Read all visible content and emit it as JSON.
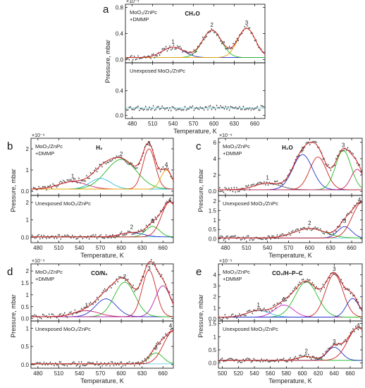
{
  "chart_data": [
    {
      "type": "line",
      "panel_letter": "a",
      "gas_label": "CH₂O",
      "xlabel": "Temperature, K",
      "ylabel": "Pressure, mbar",
      "exponent": "×10⁻⁹",
      "xlim": [
        470,
        675
      ],
      "xticks": [
        480,
        510,
        540,
        570,
        600,
        630,
        660
      ],
      "exposed": {
        "label_lines": [
          "MoO₃/ZnPc",
          "+DMMP"
        ],
        "ylim": [
          -0.05,
          0.85
        ],
        "yticks": [
          0.0,
          0.4,
          0.8
        ],
        "background": 0.03,
        "peaks": [
          {
            "number": "1",
            "center": 540,
            "height": 0.16,
            "width": 16,
            "color": "#2233cc"
          },
          {
            "number": "2",
            "center": 597,
            "height": 0.42,
            "width": 14,
            "color": "#22bb22"
          },
          {
            "number": "3",
            "center": 648,
            "height": 0.45,
            "width": 13,
            "color": "#e8a300"
          }
        ]
      },
      "unexposed": {
        "label": "Unexposed MoO₃/ZnPc",
        "ylim": [
          -0.05,
          0.85
        ],
        "yticks": [
          0.0,
          0.4
        ],
        "background": 0.12,
        "peaks": []
      }
    },
    {
      "type": "line",
      "panel_letter": "b",
      "gas_label": "H₂",
      "xlabel": "Temperature, K",
      "ylabel": "Pressure, mbar",
      "exponent": "×10⁻⁹",
      "xlim": [
        470,
        675
      ],
      "xticks": [
        480,
        510,
        540,
        570,
        600,
        630,
        660
      ],
      "exposed": {
        "label_lines": [
          "MoO₃/ZnPc",
          "+DMMP"
        ],
        "ylim": [
          -0.2,
          2.5
        ],
        "yticks": [
          0,
          1,
          2
        ],
        "background": 0.1,
        "peaks": [
          {
            "number": "1",
            "center": 530,
            "height": 0.35,
            "width": 20,
            "color": "#cc2266"
          },
          {
            "number": "2",
            "center": 600,
            "height": 1.4,
            "width": 22,
            "color": "#22bb22"
          },
          {
            "number": "",
            "center": 570,
            "height": 0.5,
            "width": 15,
            "color": "#33bbdd"
          },
          {
            "number": "3",
            "center": 640,
            "height": 1.9,
            "width": 9,
            "color": "#cc2222"
          },
          {
            "number": "4",
            "center": 665,
            "height": 0.9,
            "width": 8,
            "color": "#e8a300"
          }
        ]
      },
      "unexposed": {
        "label": "Unexposed MoO₃/ZnPc",
        "ylim": [
          -0.3,
          2.4
        ],
        "yticks": [
          0,
          1,
          2
        ],
        "background": 0.03,
        "peaks": [
          {
            "number": "2",
            "center": 615,
            "height": 0.25,
            "width": 16,
            "color": "#2233cc"
          },
          {
            "number": "3",
            "center": 645,
            "height": 0.6,
            "width": 10,
            "color": "#22bb22"
          },
          {
            "number": "4",
            "center": 670,
            "height": 2.0,
            "width": 12,
            "color": "#cc2222"
          }
        ]
      }
    },
    {
      "type": "line",
      "panel_letter": "c",
      "gas_label": "H₂O",
      "xlabel": "Temperature, K",
      "ylabel": "Pressure, mbar",
      "exponent": "×10⁻⁹",
      "xlim": [
        470,
        675
      ],
      "xticks": [
        480,
        510,
        540,
        570,
        600,
        630,
        660
      ],
      "exposed": {
        "label_lines": [
          "MoO₃/ZnPc",
          "+DMMP"
        ],
        "ylim": [
          -0.5,
          6.5
        ],
        "yticks": [
          0,
          2,
          4,
          6
        ],
        "background": 0.2,
        "peaks": [
          {
            "number": "1",
            "center": 540,
            "height": 0.8,
            "width": 18,
            "color": "#555555"
          },
          {
            "number": "2",
            "center": 590,
            "height": 4.3,
            "width": 14,
            "color": "#2233cc"
          },
          {
            "number": "",
            "center": 612,
            "height": 4.0,
            "width": 12,
            "color": "#cc2222"
          },
          {
            "number": "3",
            "center": 648,
            "height": 4.8,
            "width": 11,
            "color": "#22bb22"
          },
          {
            "number": "",
            "center": 668,
            "height": 2.5,
            "width": 9,
            "color": "#cc2266"
          }
        ]
      },
      "unexposed": {
        "label": "Unexposed MoO₃/ZnPc",
        "ylim": [
          -0.2,
          2.3
        ],
        "yticks": [
          0.0,
          0.5,
          1.0,
          1.5,
          2.0
        ],
        "background": 0.05,
        "peaks": [
          {
            "number": "2",
            "center": 600,
            "height": 0.5,
            "width": 22,
            "color": "#22bb22"
          },
          {
            "number": "3",
            "center": 650,
            "height": 0.6,
            "width": 10,
            "color": "#2233cc"
          },
          {
            "number": "4",
            "center": 675,
            "height": 1.9,
            "width": 14,
            "color": "#cc2222"
          }
        ]
      }
    },
    {
      "type": "line",
      "panel_letter": "d",
      "gas_label": "CO/N₂",
      "xlabel": "Temperature, K",
      "ylabel": "Pressure, mbar",
      "exponent": "×10⁻⁹",
      "xlim": [
        470,
        675
      ],
      "xticks": [
        480,
        510,
        540,
        570,
        600,
        630,
        660
      ],
      "exposed": {
        "label_lines": [
          "MoO₃/ZnPc",
          "+DMMP"
        ],
        "ylim": [
          -0.1,
          2.3
        ],
        "yticks": [
          0.0,
          0.5,
          1.0,
          1.5,
          2.0
        ],
        "background": 0.08,
        "peaks": [
          {
            "number": "1",
            "center": 550,
            "height": 0.25,
            "width": 18,
            "color": "#cc2266"
          },
          {
            "number": "",
            "center": 578,
            "height": 0.75,
            "width": 15,
            "color": "#2233cc"
          },
          {
            "number": "2",
            "center": 605,
            "height": 1.45,
            "width": 15,
            "color": "#22bb22"
          },
          {
            "number": "3",
            "center": 640,
            "height": 1.95,
            "width": 10,
            "color": "#cc2222"
          },
          {
            "number": "",
            "center": 660,
            "height": 1.3,
            "width": 11,
            "color": "#aa22aa"
          }
        ]
      },
      "unexposed": {
        "label": "Unexposed MoO₃/ZnPc",
        "ylim": [
          -0.1,
          1.2
        ],
        "yticks": [
          0.0,
          0.5,
          1.0
        ],
        "background": 0.02,
        "peaks": [
          {
            "number": "3",
            "center": 650,
            "height": 0.3,
            "width": 10,
            "color": "#22bb22"
          },
          {
            "number": "4",
            "center": 675,
            "height": 0.9,
            "width": 14,
            "color": "#cc2222"
          }
        ]
      }
    },
    {
      "type": "line",
      "panel_letter": "e",
      "gas_label": "CO₂/H–P–C",
      "xlabel": "Temperature, K",
      "ylabel": "Pressure, mbar",
      "exponent": "×10⁻⁹",
      "xlim": [
        495,
        675
      ],
      "xticks": [
        500,
        520,
        540,
        560,
        580,
        600,
        620,
        640,
        660
      ],
      "exposed": {
        "label_lines": [
          "MoO₃/ZnPc",
          "+DMMP"
        ],
        "ylim": [
          -0.2,
          5.0
        ],
        "yticks": [
          0,
          1,
          2,
          3,
          4
        ],
        "background": 0.15,
        "peaks": [
          {
            "number": "1",
            "center": 545,
            "height": 0.6,
            "width": 14,
            "color": "#33bbdd"
          },
          {
            "number": "2",
            "center": 577,
            "height": 1.1,
            "width": 12,
            "color": "#cc22cc"
          },
          {
            "number": "",
            "center": 605,
            "height": 3.2,
            "width": 14,
            "color": "#22bb22"
          },
          {
            "number": "3",
            "center": 640,
            "height": 3.9,
            "width": 11,
            "color": "#cc2222"
          },
          {
            "number": "",
            "center": 663,
            "height": 1.7,
            "width": 8,
            "color": "#2233cc"
          }
        ]
      },
      "unexposed": {
        "label": "Unexposed MoO₃/ZnPc",
        "ylim": [
          -0.2,
          1.6
        ],
        "yticks": [
          0.0,
          0.5,
          1.0,
          1.5
        ],
        "background": 0.1,
        "peaks": [
          {
            "number": "2",
            "center": 605,
            "height": 0.15,
            "width": 10,
            "color": "#22bb22"
          },
          {
            "number": "3",
            "center": 640,
            "height": 0.5,
            "width": 9,
            "color": "#2233cc"
          },
          {
            "number": "4",
            "center": 670,
            "height": 1.25,
            "width": 13,
            "color": "#cc2222"
          }
        ]
      }
    }
  ],
  "palette": {
    "data_points": "#333333",
    "fit_envelope": "#cc2222",
    "axis": "#000000"
  }
}
